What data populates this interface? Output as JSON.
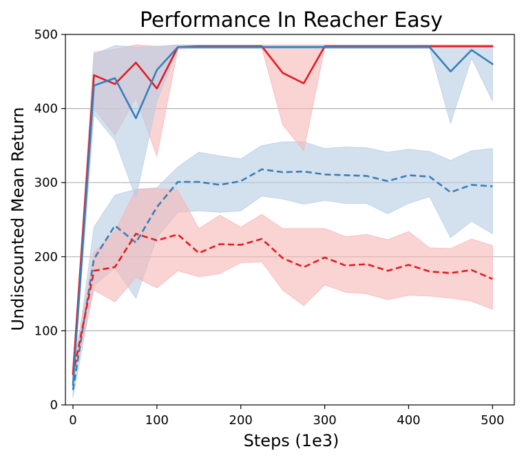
{
  "chart_data": {
    "type": "line",
    "title": "Performance In Reacher Easy",
    "xlabel": "Steps (1e3)",
    "ylabel": "Undiscounted Mean Return",
    "xlim": [
      -9,
      526
    ],
    "ylim": [
      0,
      500
    ],
    "xticks": [
      0,
      100,
      200,
      300,
      400,
      500
    ],
    "yticks": [
      0,
      100,
      200,
      300,
      400,
      500
    ],
    "grid": "horizontal",
    "legend": "none",
    "colors": {
      "red": "#e41a1c",
      "blue": "#377eb8",
      "red_fill": "#f7b6b6",
      "blue_fill": "#b5cde5",
      "grid": "#b0b0b0"
    },
    "x": [
      0,
      25,
      50,
      75,
      100,
      125,
      150,
      175,
      200,
      225,
      250,
      275,
      300,
      325,
      350,
      375,
      400,
      425,
      450,
      475,
      500
    ],
    "series": [
      {
        "color_key": "blue",
        "style": "dashed",
        "values": [
          20,
          197,
          242,
          219,
          267,
          301,
          301,
          297,
          302,
          318,
          314,
          315,
          311,
          310,
          309,
          302,
          310,
          308,
          287,
          297,
          295
        ],
        "upper": [
          30,
          240,
          283,
          291,
          293,
          321,
          341,
          336,
          332,
          350,
          355,
          355,
          346,
          348,
          347,
          341,
          345,
          342,
          330,
          343,
          346
        ],
        "lower": [
          10,
          161,
          185,
          144,
          226,
          260,
          262,
          260,
          262,
          282,
          278,
          271,
          276,
          272,
          272,
          258,
          272,
          281,
          226,
          248,
          231
        ]
      },
      {
        "color_key": "red",
        "style": "dashed",
        "values": [
          40,
          181,
          186,
          231,
          222,
          230,
          205,
          217,
          216,
          224,
          198,
          186,
          199,
          188,
          190,
          181,
          189,
          180,
          178,
          182,
          170
        ],
        "upper": [
          49,
          206,
          234,
          291,
          292,
          290,
          238,
          256,
          240,
          257,
          238,
          238,
          238,
          227,
          230,
          223,
          234,
          212,
          211,
          224,
          215
        ],
        "lower": [
          31,
          155,
          139,
          172,
          158,
          181,
          173,
          177,
          192,
          193,
          155,
          134,
          162,
          152,
          150,
          142,
          148,
          147,
          144,
          140,
          129
        ]
      },
      {
        "color_key": "red",
        "style": "solid",
        "values": [
          42,
          445,
          433,
          462,
          427,
          483,
          484,
          484,
          484,
          484,
          448,
          434,
          484,
          484,
          484,
          484,
          484,
          484,
          484,
          484,
          484
        ],
        "upper": [
          48,
          476,
          480,
          486,
          484,
          486,
          486,
          486,
          486,
          486,
          486,
          486,
          486,
          486,
          486,
          486,
          486,
          486,
          486,
          486,
          486
        ],
        "lower": [
          36,
          400,
          364,
          414,
          336,
          480,
          482,
          482,
          482,
          482,
          378,
          343,
          482,
          482,
          482,
          482,
          482,
          482,
          482,
          482,
          482
        ]
      },
      {
        "color_key": "blue",
        "style": "solid",
        "values": [
          27,
          431,
          441,
          387,
          452,
          483,
          483,
          483,
          483,
          483,
          483,
          483,
          483,
          483,
          483,
          483,
          483,
          483,
          450,
          479,
          460
        ],
        "upper": [
          32,
          473,
          485,
          483,
          484,
          485,
          485,
          485,
          485,
          485,
          485,
          485,
          485,
          485,
          485,
          485,
          485,
          485,
          485,
          485,
          485
        ],
        "lower": [
          22,
          392,
          357,
          280,
          410,
          481,
          481,
          481,
          481,
          481,
          481,
          481,
          481,
          481,
          481,
          481,
          481,
          481,
          380,
          468,
          410
        ]
      }
    ]
  }
}
